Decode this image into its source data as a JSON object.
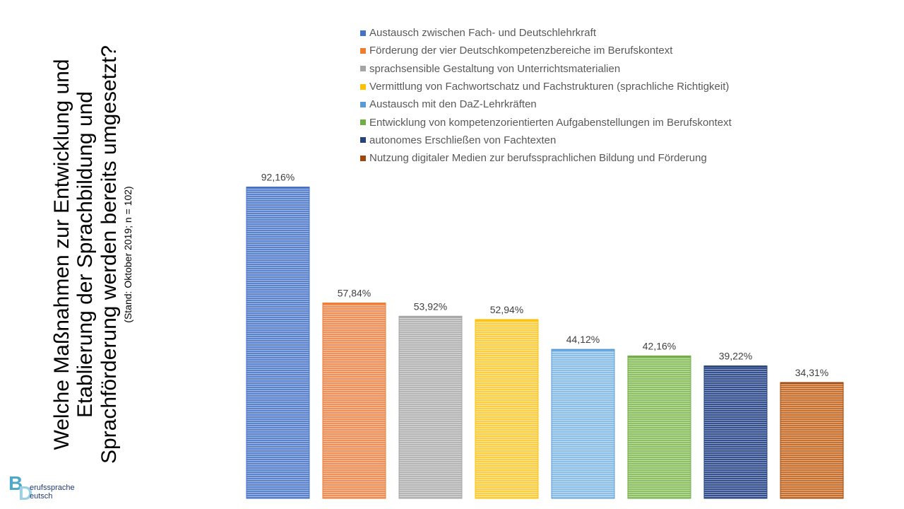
{
  "title": "Welche Maßnahmen zur Entwicklung und Etablierung der Sprachbildung und Sprachförderung werden bereits umgesetzt?",
  "subtitle": "(Stand: Oktober 2019; n = 102)",
  "logo": {
    "line1": "erufssprache",
    "line2": "eutsch",
    "letter1": "B",
    "letter2": "D"
  },
  "chart_data": {
    "type": "bar",
    "categories": [
      "Austausch zwischen Fach- und Deutschlehrkraft",
      "Förderung der vier Deutschkompetenzbereiche im Berufskontext",
      "sprachsensible Gestaltung von Unterrichtsmaterialien",
      "Vermittlung von Fachwortschatz und Fachstrukturen (sprachliche Richtigkeit)",
      "Austausch mit den DaZ-Lehrkräften",
      "Entwicklung von kompetenzorientierten Aufgabenstellungen im Berufskontext",
      "autonomes Erschließen von Fachtexten",
      "Nutzung digitaler Medien zur berufssprachlichen Bildung und Förderung"
    ],
    "values": [
      92.16,
      57.84,
      53.92,
      52.94,
      44.12,
      42.16,
      39.22,
      34.31
    ],
    "value_labels": [
      "92,16%",
      "57,84%",
      "53,92%",
      "52,94%",
      "44,12%",
      "42,16%",
      "39,22%",
      "34,31%"
    ],
    "colors": [
      "#4472c4",
      "#ed7d31",
      "#a5a5a5",
      "#ffc000",
      "#5b9bd5",
      "#70ad47",
      "#264478",
      "#9e480e"
    ],
    "bar_fill_colors": [
      "#5b82cc",
      "#f0915a",
      "#b5b5b5",
      "#fbcf45",
      "#8cbfe8",
      "#8dc060",
      "#34508f",
      "#c8702e"
    ],
    "ylim": [
      0,
      100
    ],
    "legend_position": "top",
    "grid": false
  }
}
